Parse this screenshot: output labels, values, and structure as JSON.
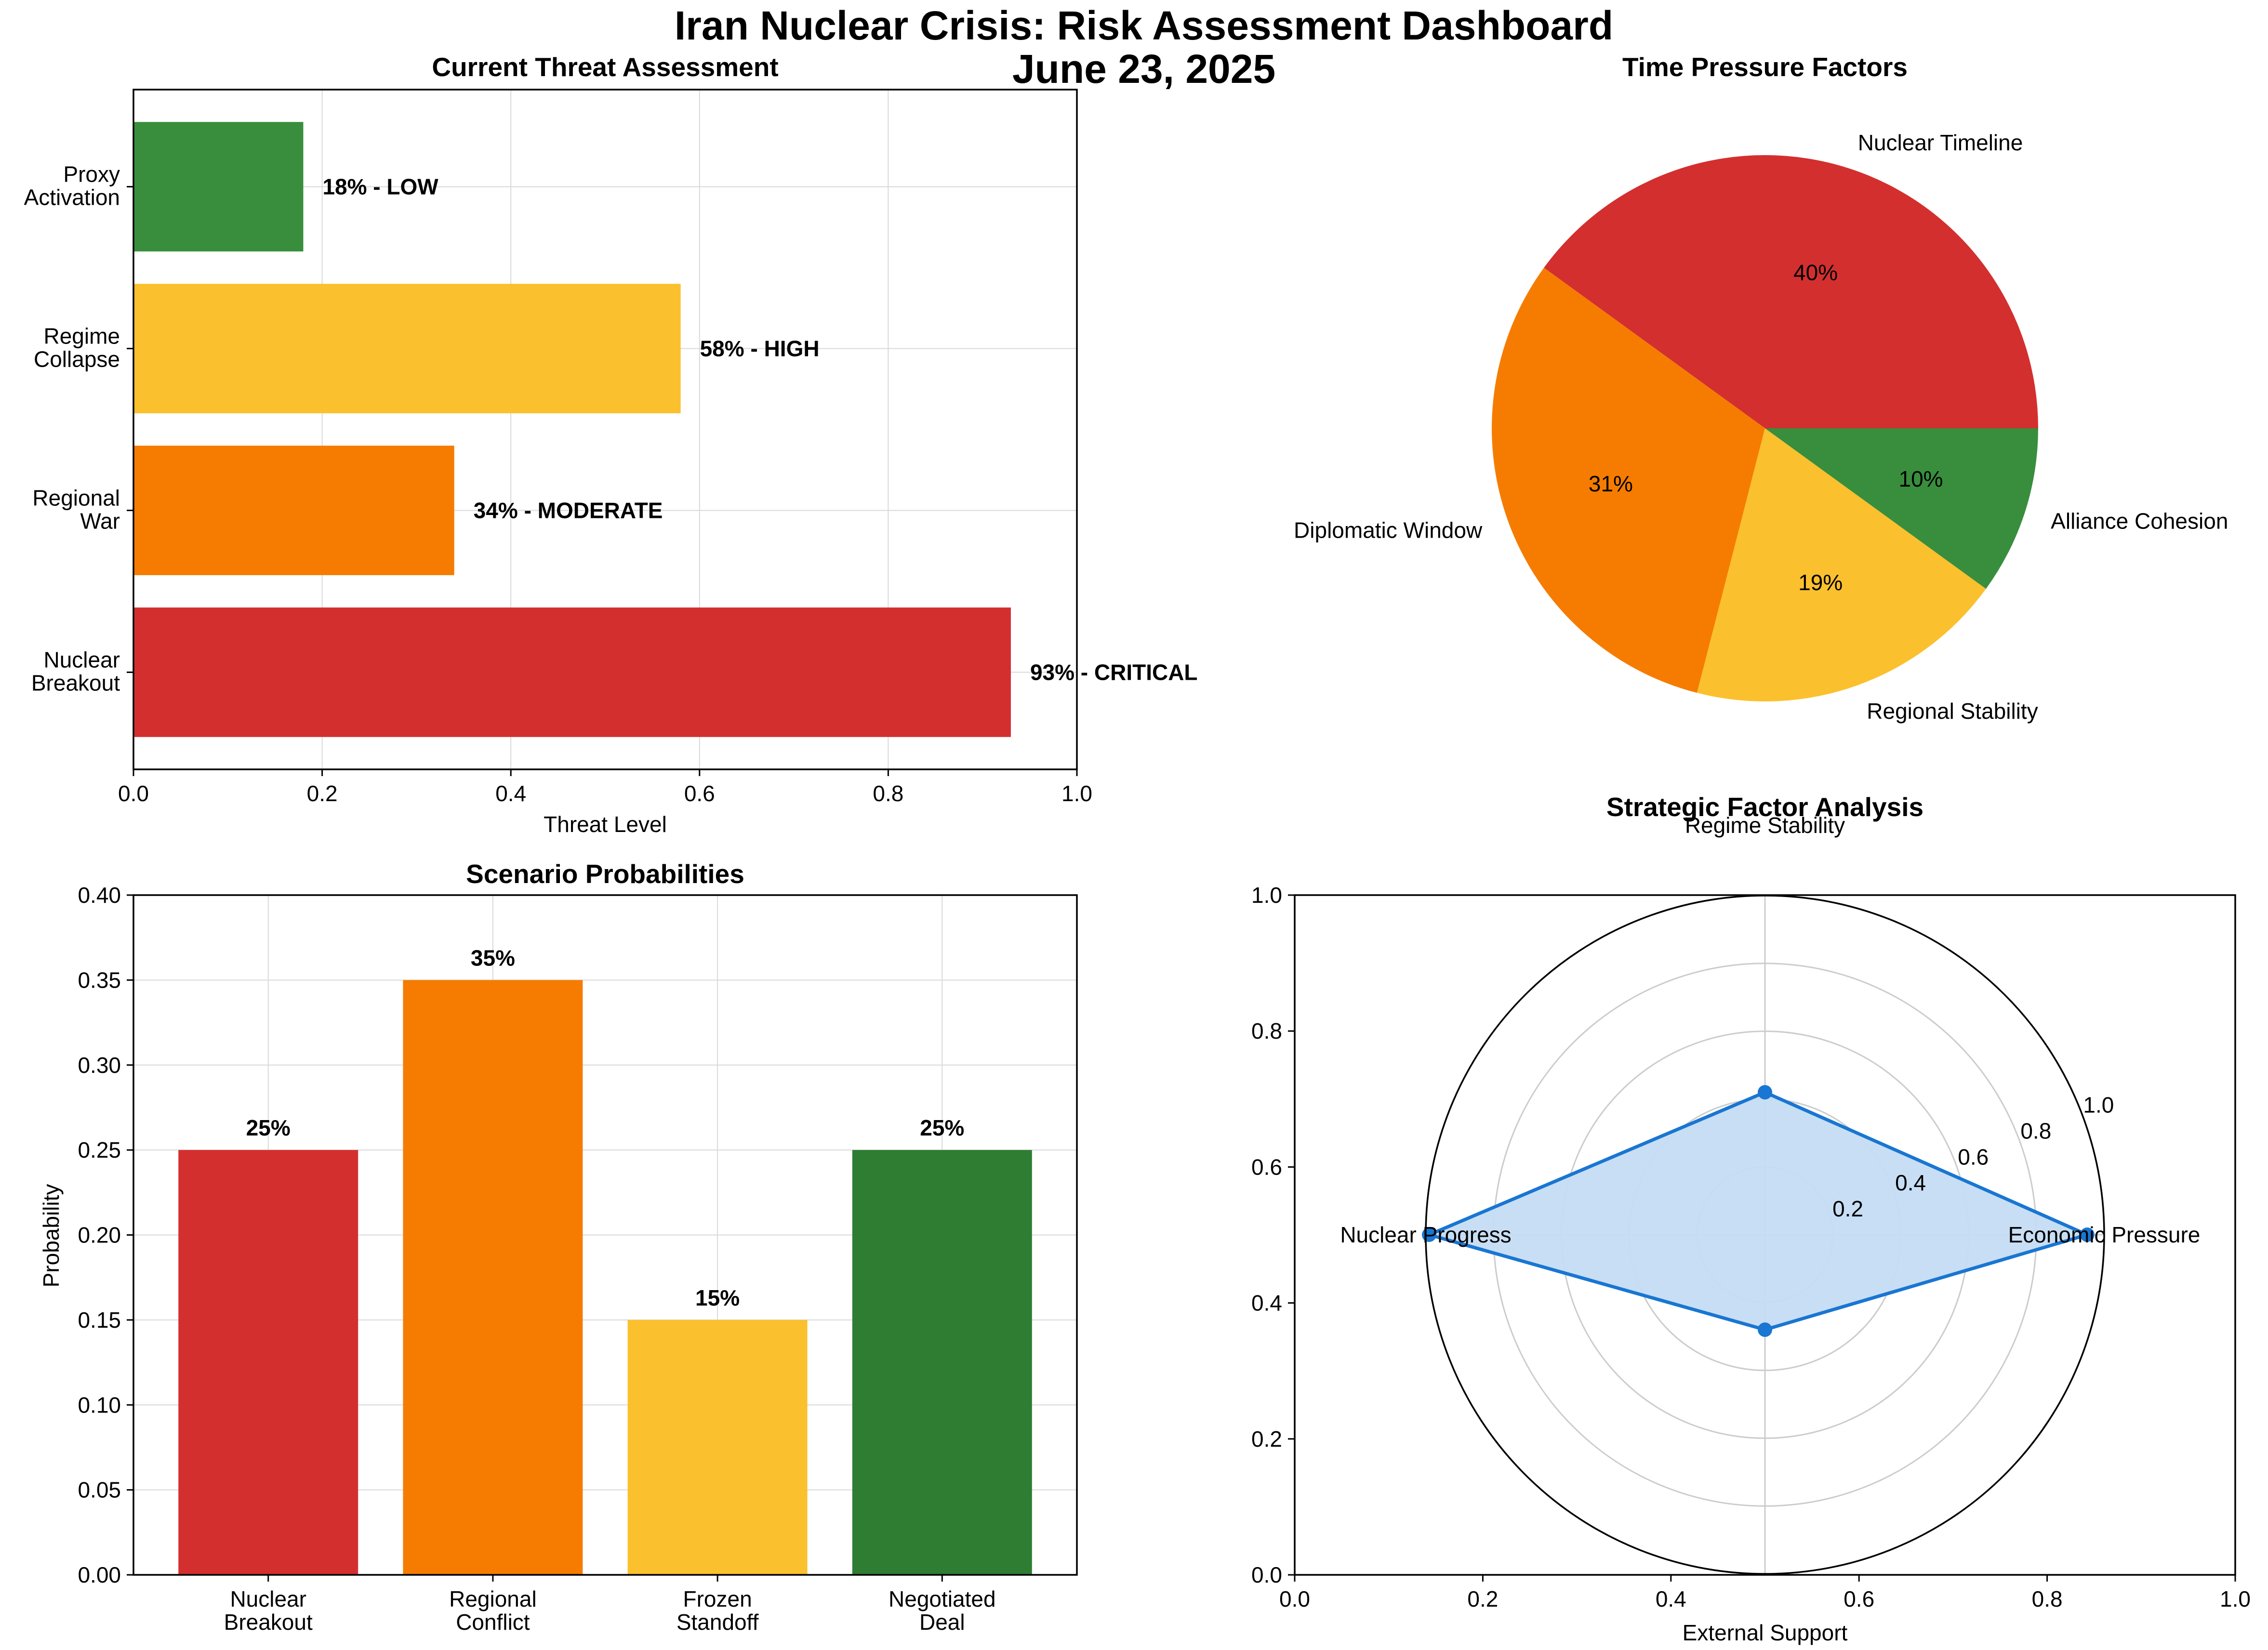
{
  "suptitle": {
    "line1": "Iran Nuclear Crisis: Risk Assessment Dashboard",
    "line2": "June 23, 2025"
  },
  "chart_data": [
    {
      "type": "bar",
      "orientation": "horizontal",
      "title": "Current Threat Assessment",
      "xlabel": "Threat Level",
      "ylabel": "",
      "xlim": [
        0,
        1.0
      ],
      "xticks": [
        "0.0",
        "0.2",
        "0.4",
        "0.6",
        "0.8",
        "1.0"
      ],
      "grid": true,
      "categories": [
        {
          "line1": "Nuclear",
          "line2": "Breakout"
        },
        {
          "line1": "Regional",
          "line2": "War"
        },
        {
          "line1": "Regime",
          "line2": "Collapse"
        },
        {
          "line1": "Proxy",
          "line2": "Activation"
        }
      ],
      "values": [
        0.93,
        0.34,
        0.58,
        0.18
      ],
      "data_labels": [
        "93% - CRITICAL",
        "34% - MODERATE",
        "58% - HIGH",
        "18% - LOW"
      ],
      "colors": [
        "#d32f2f",
        "#f57c00",
        "#fbc02d",
        "#388e3c"
      ]
    },
    {
      "type": "pie",
      "title": "Time Pressure Factors",
      "labels": [
        "Nuclear Timeline",
        "Diplomatic Window",
        "Regional Stability",
        "Alliance Cohesion"
      ],
      "values": [
        40,
        31,
        19,
        10
      ],
      "pct_labels": [
        "40%",
        "31%",
        "19%",
        "10%"
      ],
      "colors": [
        "#d32f2f",
        "#f57c00",
        "#fbc02d",
        "#388e3c"
      ]
    },
    {
      "type": "bar",
      "title": "Scenario Probabilities",
      "xlabel": "",
      "ylabel": "Probability",
      "ylim": [
        0,
        0.4
      ],
      "yticks": [
        "0.00",
        "0.05",
        "0.10",
        "0.15",
        "0.20",
        "0.25",
        "0.30",
        "0.35",
        "0.40"
      ],
      "grid": true,
      "categories": [
        {
          "line1": "Nuclear",
          "line2": "Breakout"
        },
        {
          "line1": "Regional",
          "line2": "Conflict"
        },
        {
          "line1": "Frozen",
          "line2": "Standoff"
        },
        {
          "line1": "Negotiated",
          "line2": "Deal"
        }
      ],
      "values": [
        0.25,
        0.35,
        0.15,
        0.25
      ],
      "data_labels": [
        "25%",
        "35%",
        "15%",
        "25%"
      ],
      "colors": [
        "#d32f2f",
        "#f57c00",
        "#fbc02d",
        "#2e7d32"
      ]
    },
    {
      "type": "radar",
      "title": "Strategic Factor Analysis",
      "axes": [
        "Economic Pressure",
        "Regime Stability",
        "Nuclear Progress",
        "External Support"
      ],
      "values": [
        0.95,
        0.42,
        0.99,
        0.28
      ],
      "rticks": [
        "0.2",
        "0.4",
        "0.6",
        "0.8",
        "1.0"
      ],
      "rlim": [
        0,
        1.0
      ],
      "line_color": "#1976d2",
      "fill_color": "#c5dcf3",
      "background_xticks": [
        "0.0",
        "0.2",
        "0.4",
        "0.6",
        "0.8",
        "1.0"
      ],
      "background_yticks": [
        "0.0",
        "0.2",
        "0.4",
        "0.6",
        "0.8",
        "1.0"
      ]
    }
  ]
}
